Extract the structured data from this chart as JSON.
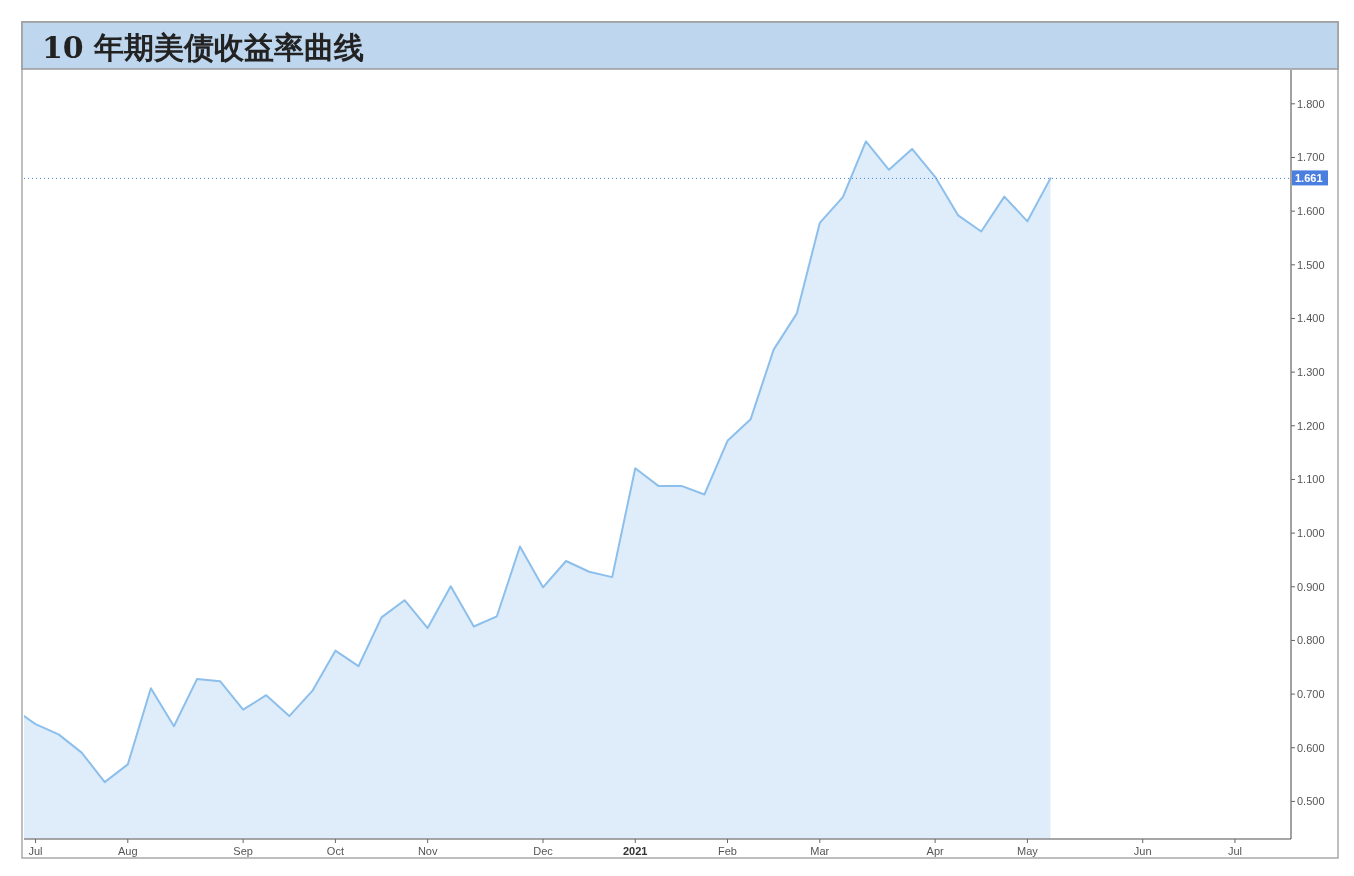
{
  "chart_data": {
    "type": "area",
    "title": "10 年期美债收益率曲线",
    "x": [
      "2020-07-02T12:00",
      "2020-07-06",
      "2020-07-13",
      "2020-07-20",
      "2020-07-27",
      "2020-08-03",
      "2020-08-10",
      "2020-08-17",
      "2020-08-24",
      "2020-08-31",
      "2020-09-07",
      "2020-09-14",
      "2020-09-21",
      "2020-09-28",
      "2020-10-05",
      "2020-10-12",
      "2020-10-19",
      "2020-10-26",
      "2020-11-02",
      "2020-11-09",
      "2020-11-16",
      "2020-11-23",
      "2020-11-30",
      "2020-12-07",
      "2020-12-14",
      "2020-12-21",
      "2020-12-28",
      "2021-01-04",
      "2021-01-11",
      "2021-01-18",
      "2021-01-25",
      "2021-02-01",
      "2021-02-08",
      "2021-02-15",
      "2021-02-22",
      "2021-03-01",
      "2021-03-08",
      "2021-03-15",
      "2021-03-22",
      "2021-03-29",
      "2021-04-05",
      "2021-04-12",
      "2021-04-19",
      "2021-04-26",
      "2021-05-03",
      "2021-05-10"
    ],
    "values": [
      0.659,
      0.644,
      0.625,
      0.591,
      0.536,
      0.569,
      0.711,
      0.64,
      0.728,
      0.724,
      0.671,
      0.698,
      0.659,
      0.706,
      0.781,
      0.752,
      0.843,
      0.875,
      0.823,
      0.901,
      0.826,
      0.845,
      0.975,
      0.899,
      0.948,
      0.928,
      0.918,
      1.121,
      1.088,
      1.088,
      1.072,
      1.172,
      1.212,
      1.342,
      1.409,
      1.578,
      1.626,
      1.73,
      1.677,
      1.716,
      1.664,
      1.592,
      1.562,
      1.627,
      1.581,
      1.661
    ],
    "color": "#8cbfec",
    "xlim": [
      "2020-07-02T12:00",
      "2021-07-22"
    ],
    "ylim": [
      0.43,
      1.863
    ],
    "xticks": [
      {
        "value": "2020-07-06",
        "label": "Jul"
      },
      {
        "value": "2020-08-03",
        "label": "Aug"
      },
      {
        "value": "2020-09-07",
        "label": "Sep"
      },
      {
        "value": "2020-10-05",
        "label": "Oct"
      },
      {
        "value": "2020-11-02",
        "label": "Nov"
      },
      {
        "value": "2020-12-07",
        "label": "Dec"
      },
      {
        "value": "2021-01-04",
        "label": "2021"
      },
      {
        "value": "2021-02-01",
        "label": "Feb"
      },
      {
        "value": "2021-03-01",
        "label": "Mar"
      },
      {
        "value": "2021-04-05",
        "label": "Apr"
      },
      {
        "value": "2021-05-03",
        "label": "May"
      },
      {
        "value": "2021-06-07",
        "label": "Jun"
      },
      {
        "value": "2021-07-05",
        "label": "Jul"
      }
    ],
    "yticks": [
      {
        "value": 0.5,
        "label": "0.500"
      },
      {
        "value": 0.6,
        "label": "0.600"
      },
      {
        "value": 0.7,
        "label": "0.700"
      },
      {
        "value": 0.8,
        "label": "0.800"
      },
      {
        "value": 0.9,
        "label": "0.900"
      },
      {
        "value": 1.0,
        "label": "1.000"
      },
      {
        "value": 1.1,
        "label": "1.100"
      },
      {
        "value": 1.2,
        "label": "1.200"
      },
      {
        "value": 1.3,
        "label": "1.300"
      },
      {
        "value": 1.4,
        "label": "1.400"
      },
      {
        "value": 1.5,
        "label": "1.500"
      },
      {
        "value": 1.6,
        "label": "1.600"
      },
      {
        "value": 1.7,
        "label": "1.700"
      },
      {
        "value": 1.8,
        "label": "1.800"
      }
    ],
    "ref_lines": [
      {
        "axis": "y",
        "value": 1.661,
        "label": "1.661",
        "color": "#4a7fe0",
        "line_style": "dotted"
      }
    ]
  }
}
